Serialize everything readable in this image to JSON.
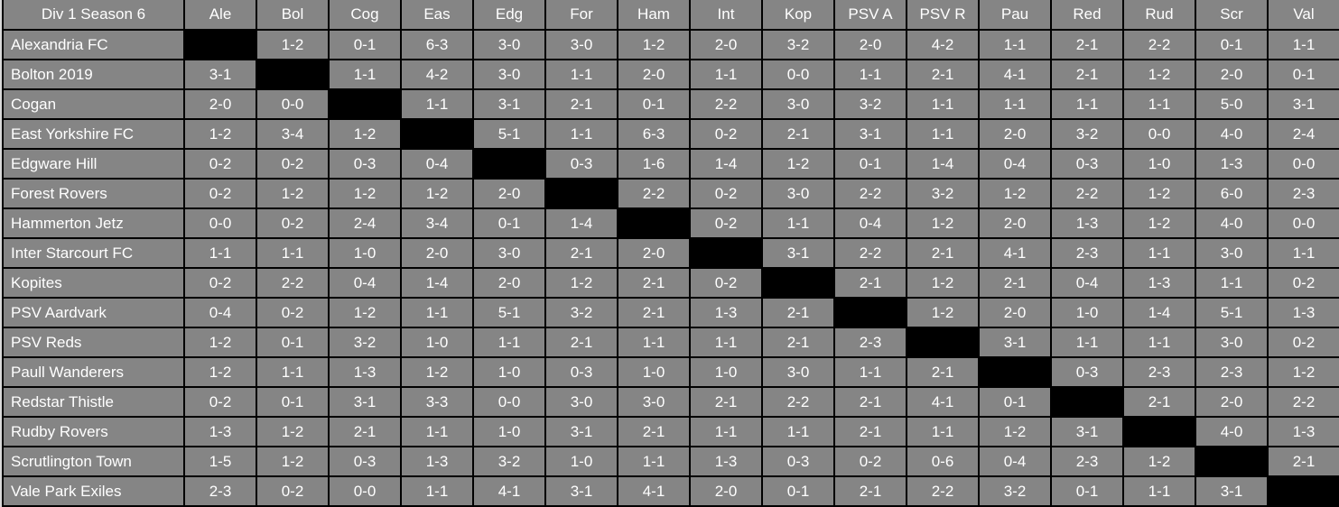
{
  "table": {
    "title": "Div 1 Season 6",
    "column_headers": [
      "Ale",
      "Bol",
      "Cog",
      "Eas",
      "Edg",
      "For",
      "Ham",
      "Int",
      "Kop",
      "PSV A",
      "PSV R",
      "Pau",
      "Red",
      "Rud",
      "Scr",
      "Val"
    ],
    "rows": [
      {
        "team": "Alexandria FC",
        "results": [
          null,
          "1-2",
          "0-1",
          "6-3",
          "3-0",
          "3-0",
          "1-2",
          "2-0",
          "3-2",
          "2-0",
          "4-2",
          "1-1",
          "2-1",
          "2-2",
          "0-1",
          "1-1"
        ]
      },
      {
        "team": "Bolton 2019",
        "results": [
          "3-1",
          null,
          "1-1",
          "4-2",
          "3-0",
          "1-1",
          "2-0",
          "1-1",
          "0-0",
          "1-1",
          "2-1",
          "4-1",
          "2-1",
          "1-2",
          "2-0",
          "0-1"
        ]
      },
      {
        "team": "Cogan",
        "results": [
          "2-0",
          "0-0",
          null,
          "1-1",
          "3-1",
          "2-1",
          "0-1",
          "2-2",
          "3-0",
          "3-2",
          "1-1",
          "1-1",
          "1-1",
          "1-1",
          "5-0",
          "3-1"
        ]
      },
      {
        "team": "East Yorkshire FC",
        "results": [
          "1-2",
          "3-4",
          "1-2",
          null,
          "5-1",
          "1-1",
          "6-3",
          "0-2",
          "2-1",
          "3-1",
          "1-1",
          "2-0",
          "3-2",
          "0-0",
          "4-0",
          "2-4"
        ]
      },
      {
        "team": "Edgware Hill",
        "results": [
          "0-2",
          "0-2",
          "0-3",
          "0-4",
          null,
          "0-3",
          "1-6",
          "1-4",
          "1-2",
          "0-1",
          "1-4",
          "0-4",
          "0-3",
          "1-0",
          "1-3",
          "0-0"
        ]
      },
      {
        "team": "Forest Rovers",
        "results": [
          "0-2",
          "1-2",
          "1-2",
          "1-2",
          "2-0",
          null,
          "2-2",
          "0-2",
          "3-0",
          "2-2",
          "3-2",
          "1-2",
          "2-2",
          "1-2",
          "6-0",
          "2-3"
        ]
      },
      {
        "team": "Hammerton Jetz",
        "results": [
          "0-0",
          "0-2",
          "2-4",
          "3-4",
          "0-1",
          "1-4",
          null,
          "0-2",
          "1-1",
          "0-4",
          "1-2",
          "2-0",
          "1-3",
          "1-2",
          "4-0",
          "0-0"
        ]
      },
      {
        "team": "Inter Starcourt FC",
        "results": [
          "1-1",
          "1-1",
          "1-0",
          "2-0",
          "3-0",
          "2-1",
          "2-0",
          null,
          "3-1",
          "2-2",
          "2-1",
          "4-1",
          "2-3",
          "1-1",
          "3-0",
          "1-1"
        ]
      },
      {
        "team": "Kopites",
        "results": [
          "0-2",
          "2-2",
          "0-4",
          "1-4",
          "2-0",
          "1-2",
          "2-1",
          "0-2",
          null,
          "2-1",
          "1-2",
          "2-1",
          "0-4",
          "1-3",
          "1-1",
          "0-2"
        ]
      },
      {
        "team": "PSV Aardvark",
        "results": [
          "0-4",
          "0-2",
          "1-2",
          "1-1",
          "5-1",
          "3-2",
          "2-1",
          "1-3",
          "2-1",
          null,
          "1-2",
          "2-0",
          "1-0",
          "1-4",
          "5-1",
          "1-3"
        ]
      },
      {
        "team": "PSV Reds",
        "results": [
          "1-2",
          "0-1",
          "3-2",
          "1-0",
          "1-1",
          "2-1",
          "1-1",
          "1-1",
          "2-1",
          "2-3",
          null,
          "3-1",
          "1-1",
          "1-1",
          "3-0",
          "0-2"
        ]
      },
      {
        "team": "Paull Wanderers",
        "results": [
          "1-2",
          "1-1",
          "1-3",
          "1-2",
          "1-0",
          "0-3",
          "1-0",
          "1-0",
          "3-0",
          "1-1",
          "2-1",
          null,
          "0-3",
          "2-3",
          "2-3",
          "1-2"
        ]
      },
      {
        "team": "Redstar Thistle",
        "results": [
          "0-2",
          "0-1",
          "3-1",
          "3-3",
          "0-0",
          "3-0",
          "3-0",
          "2-1",
          "2-2",
          "2-1",
          "4-1",
          "0-1",
          null,
          "2-1",
          "2-0",
          "2-2"
        ]
      },
      {
        "team": "Rudby Rovers",
        "results": [
          "1-3",
          "1-2",
          "2-1",
          "1-1",
          "1-0",
          "3-1",
          "2-1",
          "1-1",
          "1-1",
          "2-1",
          "1-1",
          "1-2",
          "3-1",
          null,
          "4-0",
          "1-3"
        ]
      },
      {
        "team": "Scrutlington Town",
        "results": [
          "1-5",
          "1-2",
          "0-3",
          "1-3",
          "3-2",
          "1-0",
          "1-1",
          "1-3",
          "0-3",
          "0-2",
          "0-6",
          "0-4",
          "2-3",
          "1-2",
          null,
          "2-1"
        ]
      },
      {
        "team": "Vale Park Exiles",
        "results": [
          "2-3",
          "0-2",
          "0-0",
          "1-1",
          "4-1",
          "3-1",
          "4-1",
          "2-0",
          "0-1",
          "2-1",
          "2-2",
          "3-2",
          "0-1",
          "1-1",
          "3-1",
          null
        ]
      }
    ],
    "colors": {
      "cell_bg": "#858585",
      "self_match_bg": "#000000",
      "grid": "#000000",
      "text": "#ffffff",
      "page_bg": "#d9d9d9"
    }
  }
}
